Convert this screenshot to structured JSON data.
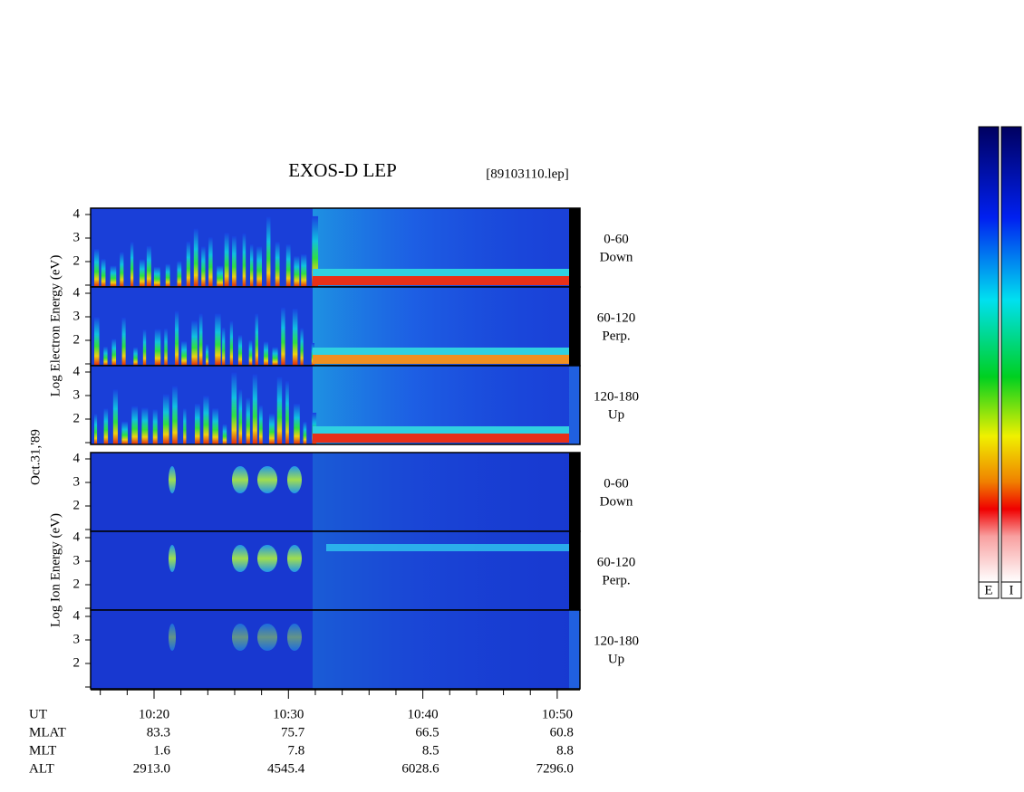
{
  "title": "EXOS-D LEP",
  "file": "[89103110.lep]",
  "electron_axis_label": "Log Electron Energy (eV)",
  "ion_axis_label": "Log Ion Energy (eV)",
  "date": "Oct.31,'89",
  "panels": [
    {
      "range": "0-60",
      "direction": "Down"
    },
    {
      "range": "60-120",
      "direction": "Perp."
    },
    {
      "range": "120-180",
      "direction": "Up"
    },
    {
      "range": "0-60",
      "direction": "Down"
    },
    {
      "range": "60-120",
      "direction": "Perp."
    },
    {
      "range": "120-180",
      "direction": "Up"
    }
  ],
  "yticks": [
    "4",
    "3",
    "2"
  ],
  "xaxis": {
    "ticks": [
      "10:20",
      "10:30",
      "10:40",
      "10:50"
    ],
    "ut_label": "UT",
    "rows": [
      {
        "label": "MLAT",
        "values": [
          "83.3",
          "75.7",
          "66.5",
          "60.8"
        ]
      },
      {
        "label": "MLT",
        "values": [
          "1.6",
          "7.8",
          "8.5",
          "8.8"
        ]
      },
      {
        "label": "ALT",
        "values": [
          "2913.0",
          "4545.4",
          "6028.6",
          "7296.0"
        ]
      }
    ]
  },
  "colorbars": [
    "E",
    "I"
  ]
}
